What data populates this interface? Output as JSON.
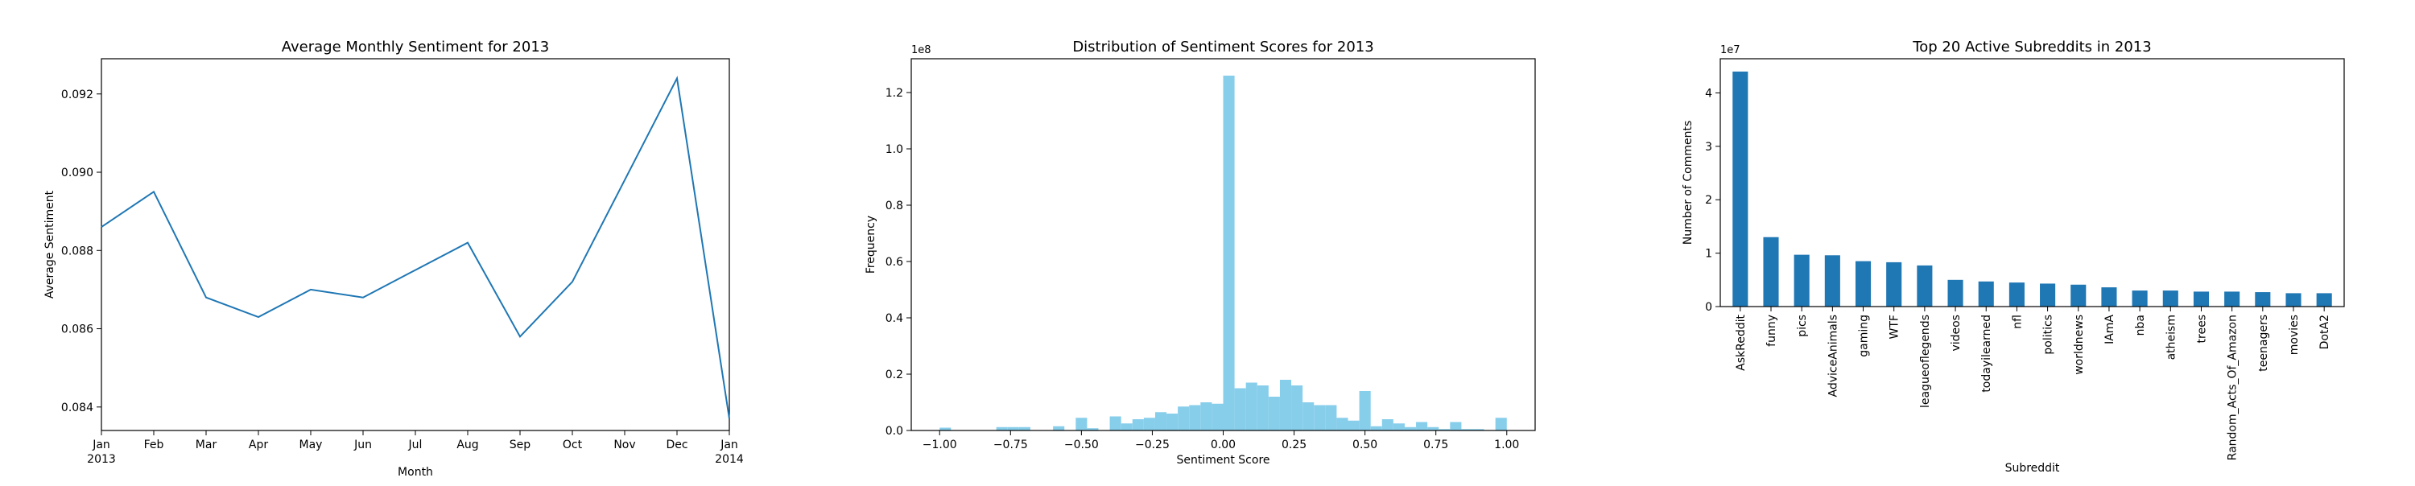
{
  "chart_data": [
    {
      "type": "line",
      "title": "Average Monthly Sentiment for 2013",
      "xlabel": "Month",
      "ylabel": "Average Sentiment",
      "x_ticks": [
        {
          "month": 0,
          "label": "Jan",
          "sublabel": "2013"
        },
        {
          "month": 1,
          "label": "Feb"
        },
        {
          "month": 2,
          "label": "Mar"
        },
        {
          "month": 3,
          "label": "Apr"
        },
        {
          "month": 4,
          "label": "May"
        },
        {
          "month": 5,
          "label": "Jun"
        },
        {
          "month": 6,
          "label": "Jul"
        },
        {
          "month": 7,
          "label": "Aug"
        },
        {
          "month": 8,
          "label": "Sep"
        },
        {
          "month": 9,
          "label": "Oct"
        },
        {
          "month": 10,
          "label": "Nov"
        },
        {
          "month": 11,
          "label": "Dec"
        },
        {
          "month": 12,
          "label": "Jan",
          "sublabel": "2014"
        }
      ],
      "values": [
        0.0886,
        0.0895,
        0.0868,
        0.0863,
        0.087,
        0.0868,
        0.0875,
        0.0882,
        0.0858,
        0.0872,
        0.0898,
        0.0924,
        0.0837
      ],
      "ylim": [
        0.0834,
        0.0929
      ],
      "yticks": [
        0.084,
        0.086,
        0.088,
        0.09,
        0.092
      ],
      "ytick_labels": [
        "0.084",
        "0.086",
        "0.088",
        "0.090",
        "0.092"
      ],
      "color": "#1f77b4",
      "grid": false
    },
    {
      "type": "bar",
      "subtype": "histogram",
      "title": "Distribution of Sentiment Scores for 2013",
      "xlabel": "Sentiment Score",
      "ylabel": "Frequency",
      "scale_label": "1e8",
      "xlim": [
        -1.1,
        1.1
      ],
      "ylim": [
        0,
        1.32
      ],
      "bin_width": 0.04,
      "bin_starts": [
        -1.0,
        -0.8,
        -0.76,
        -0.72,
        -0.6,
        -0.52,
        -0.48,
        -0.4,
        -0.36,
        -0.32,
        -0.28,
        -0.24,
        -0.2,
        -0.16,
        -0.12,
        -0.08,
        -0.04,
        0.0,
        0.04,
        0.08,
        0.12,
        0.16,
        0.2,
        0.24,
        0.28,
        0.32,
        0.36,
        0.4,
        0.44,
        0.48,
        0.52,
        0.56,
        0.6,
        0.64,
        0.68,
        0.72,
        0.76,
        0.8,
        0.84,
        0.88,
        0.96
      ],
      "values": [
        0.01,
        0.012,
        0.012,
        0.012,
        0.015,
        0.045,
        0.008,
        0.05,
        0.025,
        0.04,
        0.045,
        0.065,
        0.06,
        0.085,
        0.09,
        0.1,
        0.095,
        1.26,
        0.15,
        0.17,
        0.16,
        0.12,
        0.18,
        0.16,
        0.1,
        0.09,
        0.09,
        0.045,
        0.035,
        0.14,
        0.015,
        0.04,
        0.025,
        0.012,
        0.03,
        0.012,
        0.005,
        0.03,
        0.005,
        0.005,
        0.045
      ],
      "xticks": [
        -1.0,
        -0.75,
        -0.5,
        -0.25,
        0.0,
        0.25,
        0.5,
        0.75,
        1.0
      ],
      "xtick_labels": [
        "−1.00",
        "−0.75",
        "−0.50",
        "−0.25",
        "0.00",
        "0.25",
        "0.50",
        "0.75",
        "1.00"
      ],
      "yticks": [
        0,
        0.2,
        0.4,
        0.6,
        0.8,
        1.0,
        1.2
      ],
      "ytick_labels": [
        "0.0",
        "0.2",
        "0.4",
        "0.6",
        "0.8",
        "1.0",
        "1.2"
      ],
      "color": "#87ceeb",
      "grid": false
    },
    {
      "type": "bar",
      "title": "Top 20 Active Subreddits in 2013",
      "xlabel": "Subreddit",
      "ylabel": "Number of Comments",
      "scale_label": "1e7",
      "categories": [
        "AskReddit",
        "funny",
        "pics",
        "AdviceAnimals",
        "gaming",
        "WTF",
        "leagueoflegends",
        "videos",
        "todayilearned",
        "nfl",
        "politics",
        "worldnews",
        "IAmA",
        "nba",
        "atheism",
        "trees",
        "Random_Acts_Of_Amazon",
        "teenagers",
        "movies",
        "DotA2"
      ],
      "values": [
        4.4,
        1.3,
        0.97,
        0.96,
        0.85,
        0.83,
        0.77,
        0.5,
        0.47,
        0.45,
        0.43,
        0.41,
        0.36,
        0.3,
        0.3,
        0.28,
        0.28,
        0.27,
        0.25,
        0.25
      ],
      "ylim": [
        0,
        4.64
      ],
      "yticks": [
        0,
        1,
        2,
        3,
        4
      ],
      "ytick_labels": [
        "0",
        "1",
        "2",
        "3",
        "4"
      ],
      "color": "#1f77b4",
      "grid": false
    }
  ]
}
